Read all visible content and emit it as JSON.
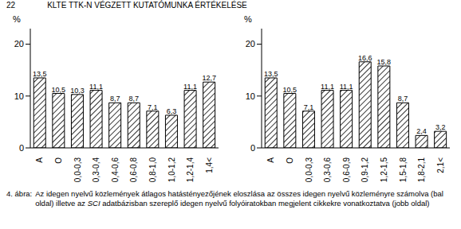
{
  "header": {
    "page": "22",
    "title": "KLTE TTK-N VÉGZETT KUTATÓMUNKA ÉRTÉKELÉSE"
  },
  "chart_data": [
    {
      "type": "bar",
      "y_label": "%",
      "categories": [
        "A",
        "O",
        "0,0-0,3",
        "0,3-0,4",
        "0,4-0,6",
        "0,6-0,8",
        "0,8-1,0",
        "1,0-1,2",
        "1,2-1,4",
        "1,4<"
      ],
      "values": [
        13.5,
        10.5,
        10.3,
        11.1,
        8.7,
        8.7,
        7.1,
        6.3,
        11.1,
        12.7
      ],
      "value_labels": [
        "13,5",
        "10,5",
        "10,3",
        "11,1",
        "8,7",
        "8,7",
        "7,1",
        "6,3",
        "11,1",
        "12,7"
      ],
      "data_labels": true,
      "color": "#000000",
      "ylim": [
        0,
        23
      ],
      "yticks": [
        0,
        10,
        20
      ],
      "grid": false
    },
    {
      "type": "bar",
      "y_label": "%",
      "categories": [
        "A",
        "O",
        "0,0-0,3",
        "0,3-0,6",
        "0,6-0,9",
        "0,9-1,2",
        "1,2-1,5",
        "1,5-1,8",
        "1,8-2,1",
        "2,1<"
      ],
      "values": [
        13.5,
        10.5,
        7.1,
        11.1,
        11.1,
        16.6,
        15.8,
        8.7,
        2.4,
        3.2
      ],
      "value_labels": [
        "13,5",
        "10,5",
        "7,1",
        "11,1",
        "11,1",
        "16,6",
        "15,8",
        "8,7",
        "2,4",
        "3,2"
      ],
      "data_labels": true,
      "color": "#000000",
      "ylim": [
        0,
        23
      ],
      "yticks": [
        0,
        10,
        20
      ],
      "grid": false
    }
  ],
  "caption": {
    "label": "4. ábra:",
    "parts": [
      "Az idegen nyelvű közlemények átlagos hatástényezőjének eloszlása az összes idegen nyelvű közleményre számolva (bal oldal) illetve az ",
      "SCI",
      " adatbázisban szereplő idegen nyelvű folyóiratokban megjelent cikkekre vonatkoztatva (jobb oldal)"
    ]
  }
}
